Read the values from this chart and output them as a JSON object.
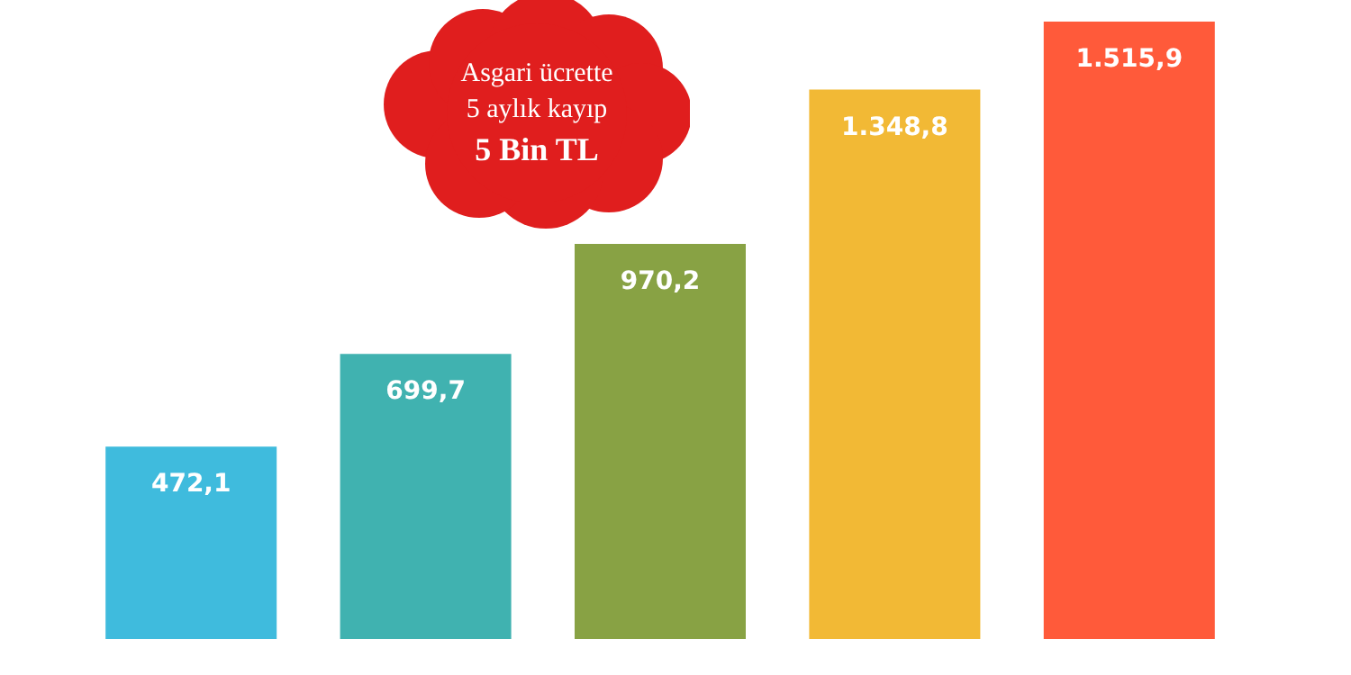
{
  "chart_data": {
    "type": "bar",
    "categories": [
      null,
      null,
      null,
      null,
      null
    ],
    "values": [
      472.1,
      699.7,
      970.2,
      1348.8,
      1515.9
    ],
    "colors": [
      "#3fbbdd",
      "#40b2b0",
      "#88a244",
      "#f2b935",
      "#ff5a3a"
    ],
    "value_labels": [
      "472,1",
      "699,7",
      "970,2",
      "1.348,8",
      "1.515,9"
    ],
    "annotations": [
      "Asgari ücrette\n5 aylık kayıp\n5 Bin TL"
    ],
    "grid": false,
    "tick_labels": false
  }
}
